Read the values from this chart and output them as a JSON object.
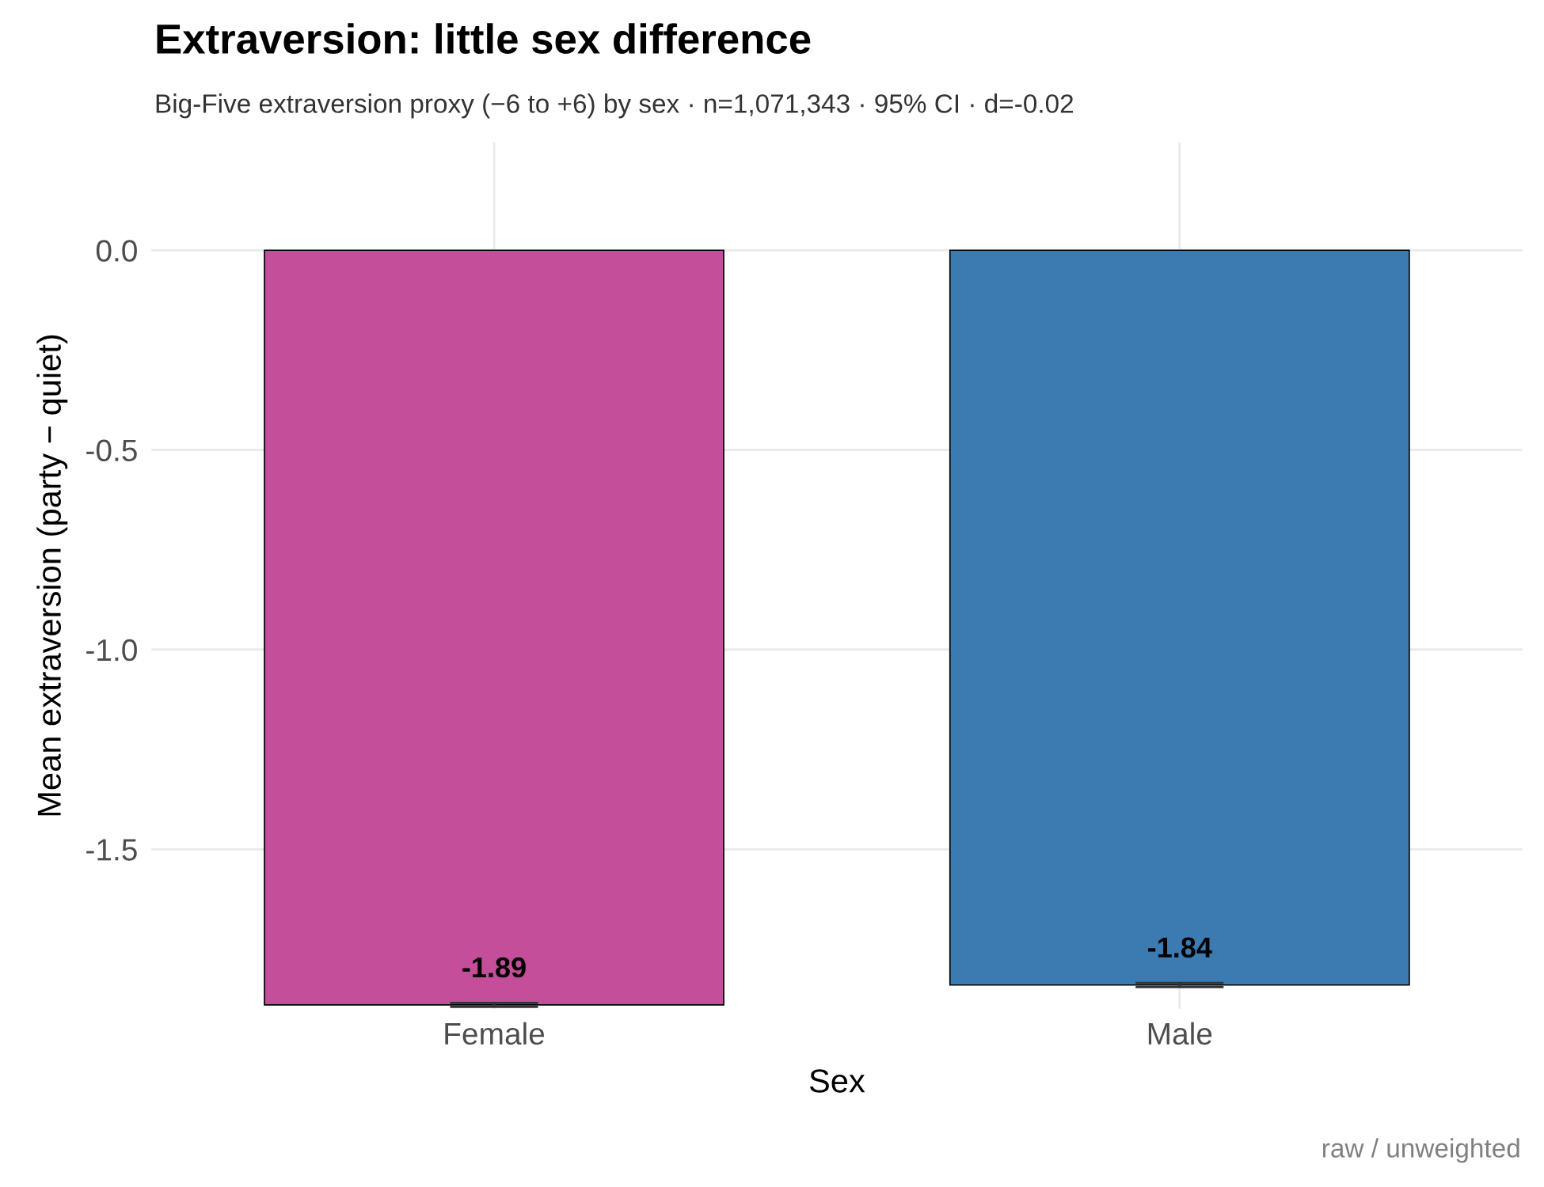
{
  "chart_data": {
    "type": "bar",
    "title": "Extraversion: little sex difference",
    "subtitle": "Big-Five extraversion proxy (−6 to +6) by sex · n=1,071,343 · 95% CI · d=-0.02",
    "xlabel": "Sex",
    "ylabel": "Mean extraversion (party − quiet)",
    "categories": [
      "Female",
      "Male"
    ],
    "values": [
      -1.89,
      -1.84
    ],
    "errors": [
      0.005,
      0.005
    ],
    "colors": [
      "#c44e99",
      "#3b7bb2"
    ],
    "ylim": [
      -1.9,
      0.27
    ],
    "yticks": [
      {
        "value": -1.5,
        "label": "-1.5"
      },
      {
        "value": -1.0,
        "label": "-1.0"
      },
      {
        "value": -0.5,
        "label": "-0.5"
      },
      {
        "value": 0.0,
        "label": "0.0"
      }
    ],
    "grid": true,
    "data_labels": true,
    "annotations": [
      "raw / unweighted"
    ]
  }
}
